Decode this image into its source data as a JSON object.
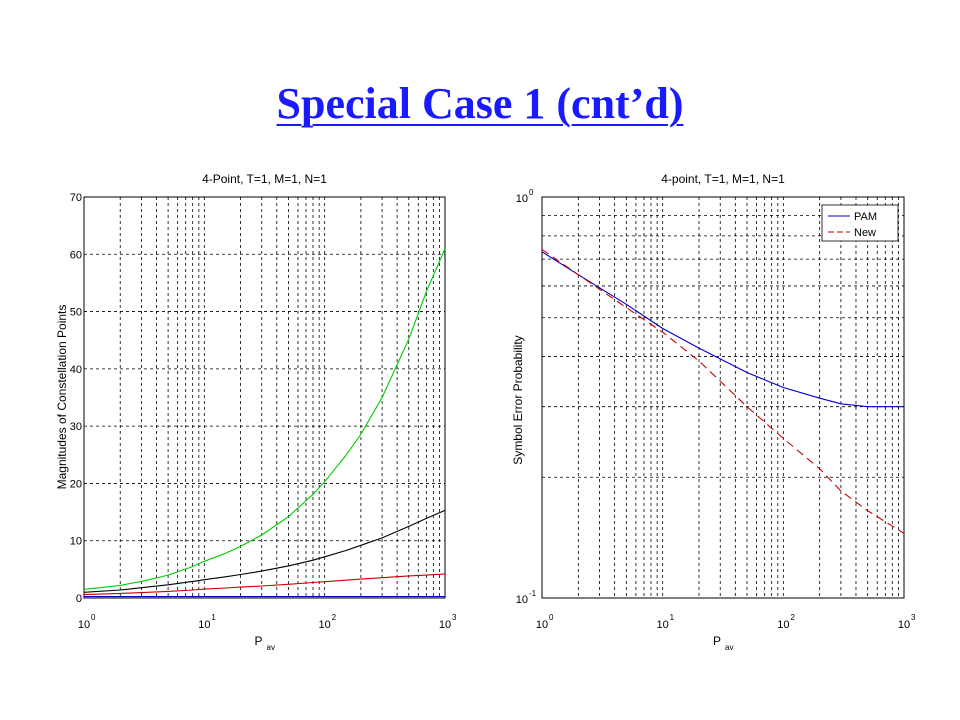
{
  "slide": {
    "title": "Special Case 1 (cnt’d)"
  },
  "chart_data": [
    {
      "type": "line",
      "title": "4-Point, T=1, M=1, N=1",
      "xlabel": "P",
      "xlabel_sub": "av",
      "ylabel": "Magnitudes of Constellation Points",
      "xscale": "log",
      "xlim": [
        1,
        1000
      ],
      "ylim": [
        0,
        70
      ],
      "grid": true,
      "x_ticks": [
        {
          "base": "10",
          "exp": "0",
          "value": 1
        },
        {
          "base": "10",
          "exp": "1",
          "value": 10
        },
        {
          "base": "10",
          "exp": "2",
          "value": 100
        },
        {
          "base": "10",
          "exp": "3",
          "value": 1000
        }
      ],
      "y_ticks": [
        "0",
        "10",
        "20",
        "30",
        "40",
        "50",
        "60",
        "70"
      ],
      "x": [
        1,
        2,
        3,
        5,
        8,
        10,
        15,
        20,
        30,
        50,
        80,
        100,
        150,
        200,
        300,
        500,
        700,
        1000
      ],
      "series": [
        {
          "color": "#00cc00",
          "dash": "",
          "y": [
            1.5,
            2.2,
            2.9,
            4.0,
            5.5,
            6.4,
            7.8,
            9.0,
            11.0,
            14.2,
            18.1,
            20.3,
            24.9,
            28.6,
            35.0,
            45.2,
            53.5,
            61.0
          ]
        },
        {
          "color": "#000000",
          "dash": "",
          "y": [
            1.0,
            1.4,
            1.8,
            2.3,
            2.9,
            3.2,
            3.7,
            4.1,
            4.7,
            5.6,
            6.6,
            7.2,
            8.3,
            9.2,
            10.5,
            12.5,
            13.9,
            15.3
          ]
        },
        {
          "color": "#cc0000",
          "dash": "",
          "y": [
            0.6,
            0.8,
            0.95,
            1.15,
            1.4,
            1.55,
            1.75,
            1.9,
            2.1,
            2.4,
            2.7,
            2.85,
            3.1,
            3.3,
            3.55,
            3.85,
            4.0,
            4.2
          ]
        },
        {
          "color": "#0000cc",
          "dash": "",
          "y": [
            0.25,
            0.25,
            0.25,
            0.25,
            0.25,
            0.25,
            0.25,
            0.25,
            0.25,
            0.25,
            0.25,
            0.25,
            0.25,
            0.25,
            0.25,
            0.25,
            0.25,
            0.25
          ]
        }
      ]
    },
    {
      "type": "line",
      "title": "4-point, T=1, M=1, N=1",
      "xlabel": "P",
      "xlabel_sub": "av",
      "ylabel": "Symbol Error Probability",
      "xscale": "log",
      "yscale": "log",
      "xlim": [
        1,
        1000
      ],
      "ylim": [
        0.1,
        1
      ],
      "grid": true,
      "legend": "top-right",
      "x_ticks": [
        {
          "base": "10",
          "exp": "0",
          "value": 1
        },
        {
          "base": "10",
          "exp": "1",
          "value": 10
        },
        {
          "base": "10",
          "exp": "2",
          "value": 100
        },
        {
          "base": "10",
          "exp": "3",
          "value": 1000
        }
      ],
      "y_ticks": [
        {
          "base": "10",
          "exp": "0",
          "value": 1
        },
        {
          "base": "10",
          "exp": "-1",
          "value": 0.1
        }
      ],
      "x": [
        1,
        2,
        5,
        10,
        20,
        50,
        100,
        200,
        300,
        500,
        700,
        1000
      ],
      "series": [
        {
          "name": "PAM",
          "color": "#0000cc",
          "dash": "",
          "y": [
            0.73,
            0.64,
            0.54,
            0.47,
            0.42,
            0.365,
            0.335,
            0.315,
            0.305,
            0.3,
            0.3,
            0.3
          ]
        },
        {
          "name": "New",
          "color": "#cc0000",
          "dash": "8,5",
          "y": [
            0.74,
            0.64,
            0.53,
            0.46,
            0.39,
            0.3,
            0.25,
            0.21,
            0.185,
            0.165,
            0.155,
            0.145
          ]
        }
      ]
    }
  ]
}
